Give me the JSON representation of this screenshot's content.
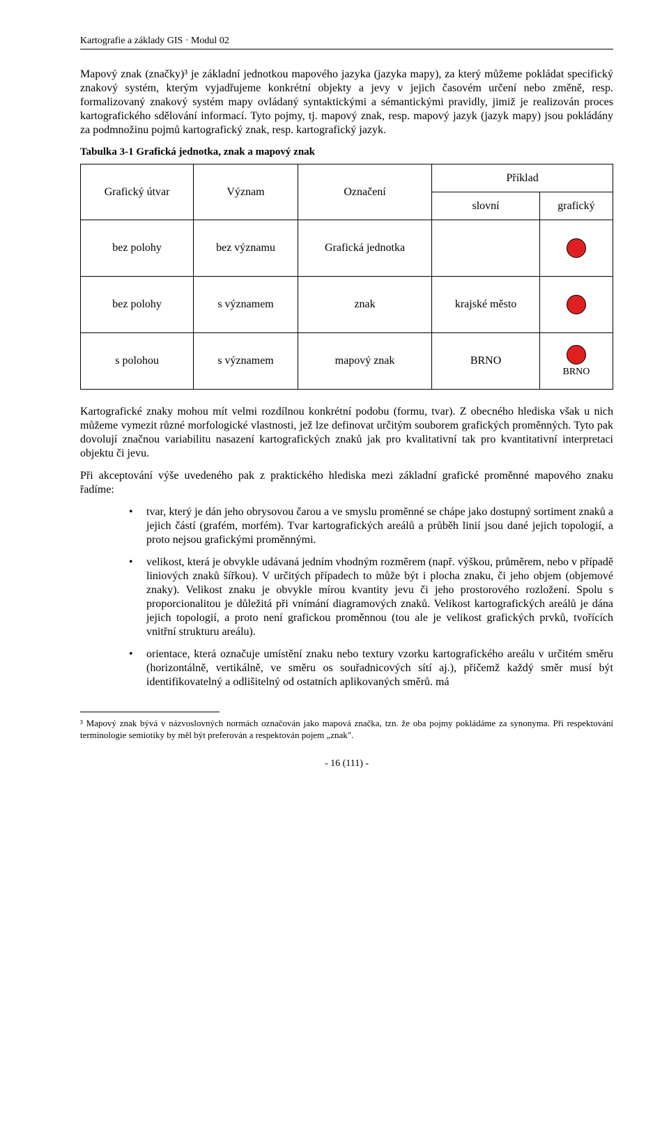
{
  "header": "Kartografie a základy GIS · Modul 02",
  "para1": "Mapový znak (značky)³ je základní jednotkou mapového jazyka (jazyka mapy), za který můžeme pokládat specifický znakový systém, kterým vyjadřujeme konkrétní objekty a jevy v jejich časovém určení nebo změně, resp. formalizovaný znakový systém mapy ovládaný syntaktickými a sémantickými pravidly, jimiž je realizován proces kartografického sdělování informací. Tyto pojmy, tj. mapový znak, resp. mapový jazyk (jazyk mapy) jsou pokládány za podmnožinu pojmů kartografický znak, resp. kartografický jazyk.",
  "table": {
    "caption": "Tabulka 3-1 Grafická jednotka, znak a mapový znak",
    "headers": {
      "c1": "Grafický útvar",
      "c2": "Význam",
      "c3": "Označení",
      "c4group": "Příklad",
      "c4a": "slovní",
      "c4b": "grafický"
    },
    "rows": [
      {
        "c1": "bez polohy",
        "c2": "bez významu",
        "c3": "Grafická jednotka",
        "c4a": "",
        "c4b_label": ""
      },
      {
        "c1": "bez polohy",
        "c2": "s významem",
        "c3": "znak",
        "c4a": "krajské město",
        "c4b_label": ""
      },
      {
        "c1": "s polohou",
        "c2": "s významem",
        "c3": "mapový znak",
        "c4a": "BRNO",
        "c4b_label": "BRNO"
      }
    ],
    "dot_color": "#e02020",
    "dot_border": "#000000"
  },
  "para2": "Kartografické znaky mohou mít velmi rozdílnou konkrétní podobu (formu, tvar). Z obecného hlediska však u nich můžeme vymezit různé morfologické vlastnosti, jež lze definovat určitým souborem grafických proměnných. Tyto pak dovolují značnou variabilitu nasazení kartografických znaků jak pro kvalitativní tak pro kvantitativní interpretaci objektu či jevu.",
  "para3": "Při akceptování výše uvedeného pak z praktického hlediska mezi základní grafické proměnné mapového znaku řadíme:",
  "bullets": [
    "tvar, který je dán jeho obrysovou čarou a ve smyslu proměnné se chápe jako dostupný sortiment znaků a jejich částí (grafém, morfém). Tvar kartografických areálů a průběh linií jsou dané jejich topologií, a proto nejsou grafickými proměnnými.",
    "velikost, která je obvykle udávaná jedním vhodným rozměrem (např. výškou, průměrem, nebo v případě liniových znaků šířkou). V určitých případech to může být i plocha znaku, či jeho objem (objemové znaky). Velikost znaku je obvykle mírou kvantity jevu či jeho prostorového rozložení. Spolu s proporcionalitou je důležitá při vnímání diagramových znaků. Velikost kartografických areálů je dána jejich topologií, a proto není grafickou proměnnou (tou ale je velikost grafických prvků, tvořících vnitřní strukturu areálu).",
    "orientace, která označuje umístění znaku nebo textury vzorku kartografického areálu v určitém směru (horizontálně, vertikálně, ve směru os souřadnicových sítí aj.), přičemž každý směr musí být identifikovatelný a odlišitelný od ostatních aplikovaných směrů. má"
  ],
  "footnote": "³ Mapový znak bývá v názvoslovných normách označován jako mapová značka, tzn. že oba pojmy pokládáme za synonyma. Při respektování terminologie semiotiky by měl být preferován a respektován pojem „znak\".",
  "page_num": "- 16 (111) -"
}
